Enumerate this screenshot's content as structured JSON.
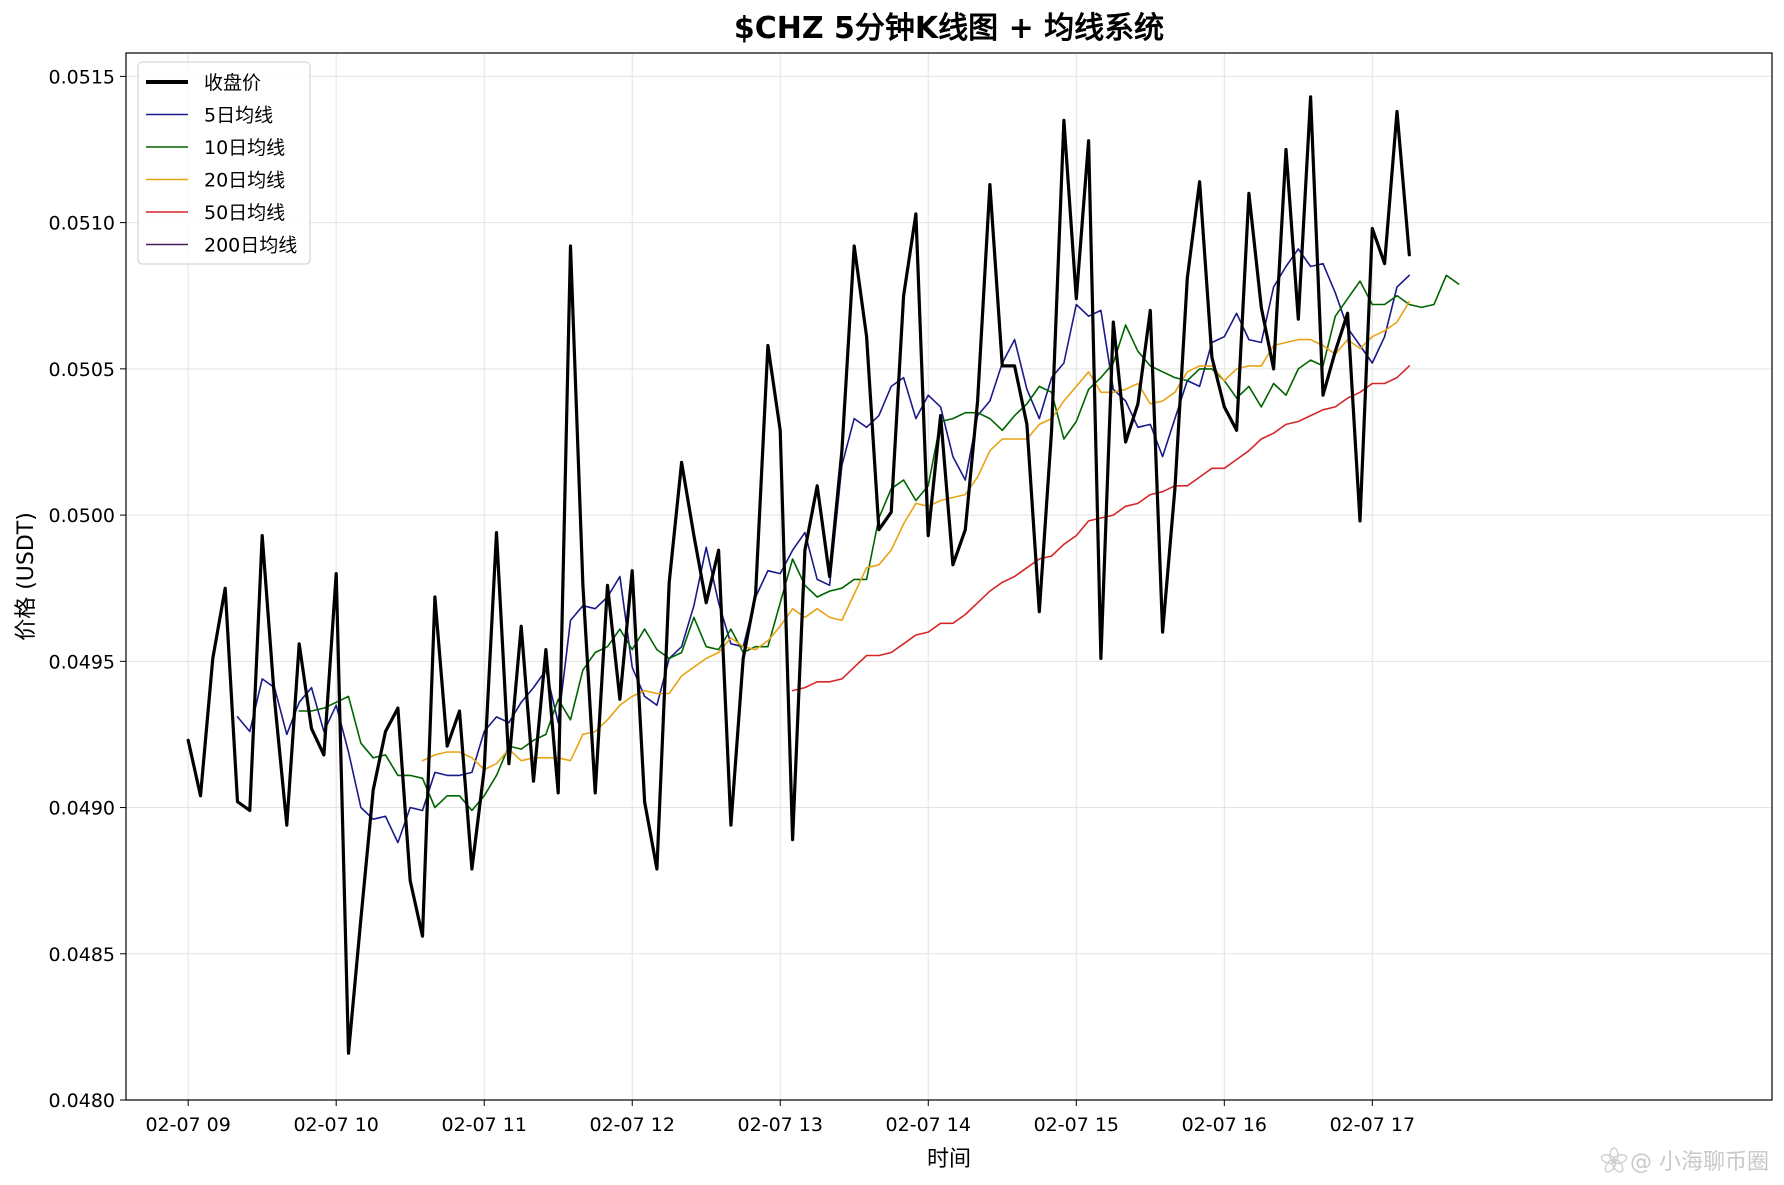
{
  "chart_data": {
    "type": "line",
    "title": "$CHZ 5分钟K线图 + 均线系统",
    "xlabel": "时间",
    "ylabel": "价格 (USDT)",
    "ylim": [
      0.048,
      0.05158
    ],
    "xlim": [
      -0.42,
      10.7
    ],
    "grid": true,
    "legend_position": "top-left",
    "x_ticks": [
      {
        "x": 0,
        "label": "02-07 09"
      },
      {
        "x": 1,
        "label": "02-07 10"
      },
      {
        "x": 2,
        "label": "02-07 11"
      },
      {
        "x": 3,
        "label": "02-07 12"
      },
      {
        "x": 4,
        "label": "02-07 13"
      },
      {
        "x": 5,
        "label": "02-07 14"
      },
      {
        "x": 6,
        "label": "02-07 15"
      },
      {
        "x": 7,
        "label": "02-07 16"
      },
      {
        "x": 8,
        "label": "02-07 17"
      }
    ],
    "y_ticks": [
      {
        "y": 0.048,
        "label": "0.0480"
      },
      {
        "y": 0.0485,
        "label": "0.0485"
      },
      {
        "y": 0.049,
        "label": "0.0490"
      },
      {
        "y": 0.0495,
        "label": "0.0495"
      },
      {
        "y": 0.05,
        "label": "0.0500"
      },
      {
        "y": 0.0505,
        "label": "0.0505"
      },
      {
        "y": 0.051,
        "label": "0.0510"
      },
      {
        "y": 0.0515,
        "label": "0.0515"
      }
    ],
    "x_step_hours": 0.08333,
    "series": [
      {
        "name": "收盘价",
        "color": "#000000",
        "width": 3.2,
        "start_index": 0,
        "legend_line_width": 4,
        "values": [
          0.04923,
          0.04904,
          0.04951,
          0.04975,
          0.04902,
          0.04899,
          0.04993,
          0.04937,
          0.04894,
          0.04956,
          0.04927,
          0.04918,
          0.0498,
          0.04816,
          0.04862,
          0.04906,
          0.04926,
          0.04934,
          0.04875,
          0.04856,
          0.04972,
          0.04921,
          0.04933,
          0.04879,
          0.04913,
          0.04994,
          0.04915,
          0.04962,
          0.04909,
          0.04954,
          0.04905,
          0.05092,
          0.04976,
          0.04905,
          0.04976,
          0.04937,
          0.04981,
          0.04902,
          0.04879,
          0.04977,
          0.05018,
          0.04993,
          0.0497,
          0.04988,
          0.04894,
          0.04951,
          0.04973,
          0.05058,
          0.05029,
          0.04889,
          0.04988,
          0.0501,
          0.04979,
          0.05022,
          0.05092,
          0.05061,
          0.04995,
          0.05001,
          0.05075,
          0.05103,
          0.04993,
          0.05034,
          0.04983,
          0.04995,
          0.05039,
          0.05113,
          0.05051,
          0.05051,
          0.05031,
          0.04967,
          0.05029,
          0.05135,
          0.05074,
          0.05128,
          0.04951,
          0.05066,
          0.05025,
          0.05038,
          0.0507,
          0.0496,
          0.05009,
          0.05081,
          0.05114,
          0.05054,
          0.05037,
          0.05029,
          0.0511,
          0.05071,
          0.0505,
          0.05125,
          0.05067,
          0.05143,
          0.05041,
          0.05056,
          0.05069,
          0.04998,
          0.05098,
          0.05086,
          0.05138,
          0.05089
        ]
      },
      {
        "name": "5日均线",
        "color": "#1a1a8c",
        "width": 1.6,
        "start_index": 4,
        "values": [
          0.04931,
          0.04926,
          0.04944,
          0.04941,
          0.04925,
          0.04936,
          0.04941,
          0.04926,
          0.04935,
          0.04919,
          0.049,
          0.04896,
          0.04897,
          0.04888,
          0.049,
          0.04899,
          0.04912,
          0.04911,
          0.04911,
          0.04912,
          0.04926,
          0.04931,
          0.04929,
          0.04936,
          0.04941,
          0.04947,
          0.04929,
          0.04964,
          0.04969,
          0.04968,
          0.04972,
          0.04979,
          0.04948,
          0.04938,
          0.04935,
          0.04951,
          0.04955,
          0.04969,
          0.04989,
          0.0497,
          0.04956,
          0.04955,
          0.04972,
          0.04981,
          0.0498,
          0.04988,
          0.04994,
          0.04978,
          0.04976,
          0.05017,
          0.05033,
          0.0503,
          0.05034,
          0.05044,
          0.05047,
          0.05033,
          0.05041,
          0.05037,
          0.0502,
          0.05012,
          0.05034,
          0.05039,
          0.05052,
          0.0506,
          0.05043,
          0.05033,
          0.05047,
          0.05052,
          0.05072,
          0.05068,
          0.0507,
          0.05043,
          0.05039,
          0.0503,
          0.05031,
          0.0502,
          0.05033,
          0.05046,
          0.05044,
          0.05059,
          0.05061,
          0.05069,
          0.0506,
          0.05059,
          0.05078,
          0.05085,
          0.05091,
          0.05085,
          0.05086,
          0.05076,
          0.05064,
          0.05058,
          0.05052,
          0.05061,
          0.05078,
          0.05082
        ]
      },
      {
        "name": "10日均线",
        "color": "#006400",
        "width": 1.6,
        "start_index": 9,
        "values": [
          0.04933,
          0.04933,
          0.04934,
          0.04936,
          0.04938,
          0.04922,
          0.04917,
          0.04918,
          0.04911,
          0.04911,
          0.0491,
          0.049,
          0.04904,
          0.04904,
          0.04899,
          0.04904,
          0.04911,
          0.04921,
          0.0492,
          0.04923,
          0.04925,
          0.04937,
          0.0493,
          0.04947,
          0.04953,
          0.04955,
          0.04961,
          0.04954,
          0.04961,
          0.04954,
          0.04951,
          0.04953,
          0.04965,
          0.04955,
          0.04954,
          0.04961,
          0.04953,
          0.04955,
          0.04955,
          0.0497,
          0.04985,
          0.04976,
          0.04972,
          0.04974,
          0.04975,
          0.04978,
          0.04978,
          0.04999,
          0.05009,
          0.05012,
          0.05005,
          0.0501,
          0.05032,
          0.05033,
          0.05035,
          0.05035,
          0.05033,
          0.05029,
          0.05034,
          0.05038,
          0.05044,
          0.05042,
          0.05026,
          0.05032,
          0.05043,
          0.05047,
          0.05052,
          0.05065,
          0.05056,
          0.05051,
          0.05049,
          0.05047,
          0.05046,
          0.0505,
          0.0505,
          0.05046,
          0.0504,
          0.05044,
          0.05037,
          0.05045,
          0.05041,
          0.0505,
          0.05053,
          0.05051,
          0.05068,
          0.05074,
          0.0508,
          0.05072,
          0.05072,
          0.05075,
          0.05072,
          0.05071,
          0.05072,
          0.05082,
          0.05079
        ]
      },
      {
        "name": "20日均线",
        "color": "#e8a317",
        "width": 1.6,
        "start_index": 19,
        "values": [
          0.04916,
          0.04918,
          0.04919,
          0.04919,
          0.04917,
          0.04913,
          0.04915,
          0.0492,
          0.04916,
          0.04917,
          0.04917,
          0.04917,
          0.04916,
          0.04925,
          0.04926,
          0.0493,
          0.04935,
          0.04938,
          0.0494,
          0.04939,
          0.04939,
          0.04945,
          0.04948,
          0.04951,
          0.04953,
          0.04958,
          0.04955,
          0.04954,
          0.04957,
          0.04962,
          0.04968,
          0.04965,
          0.04968,
          0.04965,
          0.04964,
          0.04973,
          0.04982,
          0.04983,
          0.04988,
          0.04997,
          0.05004,
          0.05003,
          0.05005,
          0.05006,
          0.05007,
          0.05013,
          0.05022,
          0.05026,
          0.05026,
          0.05026,
          0.05031,
          0.05033,
          0.05039,
          0.05044,
          0.05049,
          0.05042,
          0.05042,
          0.05043,
          0.05045,
          0.05038,
          0.05039,
          0.05042,
          0.05049,
          0.05051,
          0.05051,
          0.05046,
          0.0505,
          0.05051,
          0.05051,
          0.05058,
          0.05059,
          0.0506,
          0.0506,
          0.05058,
          0.05055,
          0.0506,
          0.05057,
          0.05061,
          0.05063,
          0.05066,
          0.05073
        ]
      },
      {
        "name": "50日均线",
        "color": "#d62728",
        "width": 1.6,
        "start_index": 49,
        "values": [
          0.0494,
          0.04941,
          0.04943,
          0.04943,
          0.04944,
          0.04948,
          0.04952,
          0.04952,
          0.04953,
          0.04956,
          0.04959,
          0.0496,
          0.04963,
          0.04963,
          0.04966,
          0.0497,
          0.04974,
          0.04977,
          0.04979,
          0.04982,
          0.04985,
          0.04986,
          0.0499,
          0.04993,
          0.04998,
          0.04999,
          0.05,
          0.05003,
          0.05004,
          0.05007,
          0.05008,
          0.0501,
          0.0501,
          0.05013,
          0.05016,
          0.05016,
          0.05019,
          0.05022,
          0.05026,
          0.05028,
          0.05031,
          0.05032,
          0.05034,
          0.05036,
          0.05037,
          0.0504,
          0.05042,
          0.05045,
          0.05045,
          0.05047,
          0.05051
        ]
      },
      {
        "name": "200日均线",
        "color": "#4b1a5a",
        "width": 1.6,
        "start_index": 0,
        "values": []
      }
    ]
  },
  "watermark": {
    "icon": "flower-logo-icon",
    "text": "@ 小海聊币圈"
  }
}
